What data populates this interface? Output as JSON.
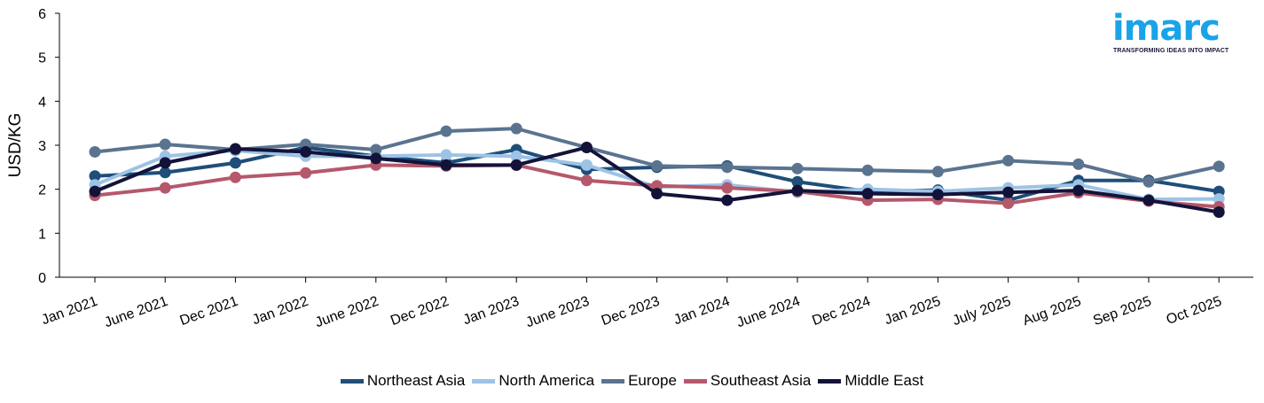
{
  "logo": {
    "text": "imarc",
    "tagline": "TRANSFORMING IDEAS INTO IMPACT"
  },
  "chart_data": {
    "type": "line",
    "title": "",
    "xlabel": "",
    "ylabel": "USD/KG",
    "ylim": [
      0,
      6
    ],
    "yticks": [
      0,
      1,
      2,
      3,
      4,
      5,
      6
    ],
    "grid": false,
    "legend_position": "bottom-center",
    "categories": [
      "Jan 2021",
      "June 2021",
      "Dec 2021",
      "Jan 2022",
      "June 2022",
      "Dec 2022",
      "Jan 2023",
      "June 2023",
      "Dec 2023",
      "Jan 2024",
      "June 2024",
      "Dec 2024",
      "Jan 2025",
      "July 2025",
      "Aug 2025",
      "Sep 2025",
      "Oct 2025"
    ],
    "series": [
      {
        "name": "Northeast Asia",
        "color": "#1f4e79",
        "values": [
          2.3,
          2.38,
          2.6,
          2.95,
          2.75,
          2.6,
          2.9,
          2.45,
          2.5,
          2.53,
          2.17,
          1.95,
          1.98,
          1.75,
          2.2,
          2.2,
          1.95
        ]
      },
      {
        "name": "North America",
        "color": "#9dc3e6",
        "values": [
          2.1,
          2.75,
          2.88,
          2.75,
          2.75,
          2.78,
          2.75,
          2.55,
          2.05,
          2.1,
          1.93,
          2.0,
          1.95,
          2.03,
          2.1,
          1.77,
          1.78
        ]
      },
      {
        "name": "Europe",
        "color": "#5a7490",
        "values": [
          2.85,
          3.02,
          2.9,
          3.02,
          2.9,
          3.32,
          3.38,
          2.95,
          2.53,
          2.5,
          2.47,
          2.43,
          2.4,
          2.65,
          2.57,
          2.17,
          2.52
        ]
      },
      {
        "name": "Southeast Asia",
        "color": "#b5586b",
        "values": [
          1.86,
          2.03,
          2.27,
          2.37,
          2.55,
          2.53,
          2.55,
          2.2,
          2.08,
          2.03,
          1.95,
          1.75,
          1.77,
          1.68,
          1.92,
          1.73,
          1.6
        ]
      },
      {
        "name": "Middle East",
        "color": "#13133a",
        "values": [
          1.95,
          2.6,
          2.92,
          2.85,
          2.7,
          2.55,
          2.55,
          2.95,
          1.9,
          1.75,
          1.97,
          1.9,
          1.88,
          1.93,
          1.97,
          1.75,
          1.48
        ]
      }
    ]
  }
}
